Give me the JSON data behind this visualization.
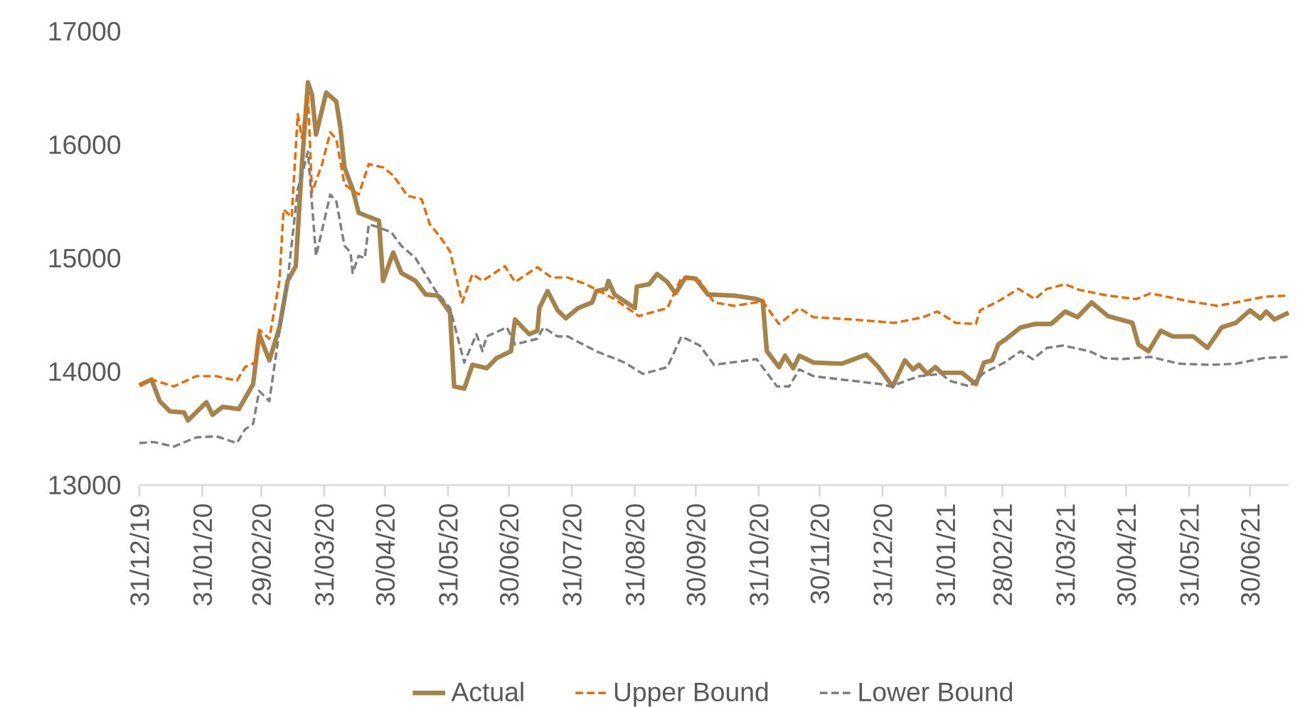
{
  "chart_data": {
    "type": "line",
    "legend": "bottom",
    "xlim": [
      "2019-12-31",
      "2021-07-19"
    ],
    "ylim": [
      13000,
      17000
    ],
    "yticks": [
      13000,
      14000,
      15000,
      16000,
      17000
    ],
    "xticks": [
      {
        "value": "2019-12-31",
        "label": "31/12/19"
      },
      {
        "value": "2020-01-31",
        "label": "31/01/20"
      },
      {
        "value": "2020-02-29",
        "label": "29/02/20"
      },
      {
        "value": "2020-03-31",
        "label": "31/03/20"
      },
      {
        "value": "2020-04-30",
        "label": "30/04/20"
      },
      {
        "value": "2020-05-31",
        "label": "31/05/20"
      },
      {
        "value": "2020-06-30",
        "label": "30/06/20"
      },
      {
        "value": "2020-07-31",
        "label": "31/07/20"
      },
      {
        "value": "2020-08-31",
        "label": "31/08/20"
      },
      {
        "value": "2020-09-30",
        "label": "30/09/20"
      },
      {
        "value": "2020-10-31",
        "label": "31/10/20"
      },
      {
        "value": "2020-11-30",
        "label": "30/11/20"
      },
      {
        "value": "2020-12-31",
        "label": "31/12/20"
      },
      {
        "value": "2021-01-31",
        "label": "31/01/21"
      },
      {
        "value": "2021-02-28",
        "label": "28/02/21"
      },
      {
        "value": "2021-03-31",
        "label": "31/03/21"
      },
      {
        "value": "2021-04-30",
        "label": "30/04/21"
      },
      {
        "value": "2021-05-31",
        "label": "31/05/21"
      },
      {
        "value": "2021-06-30",
        "label": "30/06/21"
      }
    ],
    "series": [
      {
        "name": "Actual",
        "color": "#a5834a",
        "line_style": "solid",
        "x": [
          "2019-12-31",
          "2020-01-06",
          "2020-01-10",
          "2020-01-15",
          "2020-01-22",
          "2020-01-24",
          "2020-02-02",
          "2020-02-05",
          "2020-02-10",
          "2020-02-18",
          "2020-02-25",
          "2020-02-28",
          "2020-03-04",
          "2020-03-09",
          "2020-03-13",
          "2020-03-17",
          "2020-03-20",
          "2020-03-23",
          "2020-03-25",
          "2020-03-27",
          "2020-04-01",
          "2020-04-06",
          "2020-04-08",
          "2020-04-10",
          "2020-04-14",
          "2020-04-17",
          "2020-04-27",
          "2020-04-29",
          "2020-05-04",
          "2020-05-08",
          "2020-05-15",
          "2020-05-20",
          "2020-05-26",
          "2020-06-01",
          "2020-06-03",
          "2020-06-08",
          "2020-06-12",
          "2020-06-19",
          "2020-06-24",
          "2020-07-01",
          "2020-07-03",
          "2020-07-10",
          "2020-07-14",
          "2020-07-15",
          "2020-07-19",
          "2020-07-24",
          "2020-07-28",
          "2020-08-03",
          "2020-08-10",
          "2020-08-12",
          "2020-08-17",
          "2020-08-18",
          "2020-08-21",
          "2020-08-31",
          "2020-09-01",
          "2020-09-07",
          "2020-09-11",
          "2020-09-16",
          "2020-09-20",
          "2020-09-25",
          "2020-09-30",
          "2020-10-06",
          "2020-10-19",
          "2020-10-30",
          "2020-11-02",
          "2020-11-04",
          "2020-11-10",
          "2020-11-13",
          "2020-11-17",
          "2020-11-20",
          "2020-11-27",
          "2020-12-11",
          "2020-12-23",
          "2020-12-29",
          "2021-01-05",
          "2021-01-11",
          "2021-01-15",
          "2021-01-18",
          "2021-01-22",
          "2021-01-26",
          "2021-01-29",
          "2021-02-08",
          "2021-02-15",
          "2021-02-19",
          "2021-02-23",
          "2021-02-26",
          "2021-03-02",
          "2021-03-09",
          "2021-03-16",
          "2021-03-24",
          "2021-03-31",
          "2021-04-06",
          "2021-04-13",
          "2021-04-21",
          "2021-05-03",
          "2021-05-06",
          "2021-05-11",
          "2021-05-17",
          "2021-05-23",
          "2021-06-02",
          "2021-06-09",
          "2021-06-16",
          "2021-06-23",
          "2021-06-30",
          "2021-07-05",
          "2021-07-08",
          "2021-07-12",
          "2021-07-19"
        ],
        "values": [
          13880,
          13930,
          13740,
          13650,
          13640,
          13570,
          13730,
          13620,
          13690,
          13670,
          13890,
          14330,
          14100,
          14390,
          14800,
          14930,
          15810,
          16550,
          16440,
          16090,
          16460,
          16380,
          16150,
          15800,
          15610,
          15400,
          15330,
          14800,
          15050,
          14870,
          14800,
          14680,
          14670,
          14520,
          13870,
          13850,
          14060,
          14030,
          14120,
          14180,
          14460,
          14330,
          14360,
          14560,
          14710,
          14540,
          14470,
          14560,
          14610,
          14710,
          14730,
          14800,
          14680,
          14560,
          14750,
          14770,
          14860,
          14790,
          14690,
          14830,
          14820,
          14680,
          14670,
          14640,
          14620,
          14180,
          14040,
          14140,
          14030,
          14140,
          14080,
          14070,
          14150,
          14040,
          13870,
          14100,
          14020,
          14060,
          13980,
          14040,
          13990,
          13990,
          13890,
          14080,
          14100,
          14240,
          14290,
          14390,
          14420,
          14420,
          14530,
          14480,
          14610,
          14490,
          14430,
          14240,
          14180,
          14360,
          14310,
          14310,
          14210,
          14390,
          14430,
          14540,
          14470,
          14530,
          14460,
          14520
        ]
      },
      {
        "name": "Upper Bound",
        "color": "#e46c0a",
        "line_style": "dashed",
        "x": [
          "2019-12-31",
          "2020-01-06",
          "2020-01-17",
          "2020-01-28",
          "2020-02-07",
          "2020-02-17",
          "2020-02-21",
          "2020-02-26",
          "2020-02-28",
          "2020-03-04",
          "2020-03-09",
          "2020-03-11",
          "2020-03-15",
          "2020-03-18",
          "2020-03-20",
          "2020-03-23",
          "2020-03-25",
          "2020-03-30",
          "2020-04-03",
          "2020-04-06",
          "2020-04-10",
          "2020-04-17",
          "2020-04-22",
          "2020-04-29",
          "2020-05-04",
          "2020-05-11",
          "2020-05-18",
          "2020-05-22",
          "2020-05-27",
          "2020-06-01",
          "2020-06-07",
          "2020-06-12",
          "2020-06-17",
          "2020-06-28",
          "2020-07-03",
          "2020-07-14",
          "2020-07-21",
          "2020-07-29",
          "2020-08-07",
          "2020-08-21",
          "2020-09-02",
          "2020-09-16",
          "2020-09-23",
          "2020-10-02",
          "2020-10-09",
          "2020-10-19",
          "2020-11-02",
          "2020-11-10",
          "2020-11-20",
          "2020-11-27",
          "2020-12-16",
          "2021-01-06",
          "2021-01-20",
          "2021-01-27",
          "2021-02-05",
          "2021-02-15",
          "2021-02-17",
          "2021-02-26",
          "2021-03-08",
          "2021-03-16",
          "2021-03-22",
          "2021-03-31",
          "2021-04-07",
          "2021-04-21",
          "2021-05-05",
          "2021-05-12",
          "2021-05-31",
          "2021-06-14",
          "2021-06-23",
          "2021-07-07",
          "2021-07-19"
        ],
        "values": [
          13880,
          13930,
          13870,
          13960,
          13960,
          13920,
          14040,
          14080,
          14370,
          14290,
          14800,
          15430,
          15360,
          16270,
          16060,
          16440,
          15580,
          15830,
          16110,
          16050,
          15650,
          15560,
          15830,
          15800,
          15730,
          15550,
          15520,
          15300,
          15190,
          15060,
          14610,
          14860,
          14800,
          14930,
          14790,
          14920,
          14830,
          14830,
          14770,
          14640,
          14490,
          14560,
          14830,
          14800,
          14610,
          14580,
          14620,
          14420,
          14560,
          14480,
          14460,
          14430,
          14480,
          14530,
          14430,
          14420,
          14540,
          14620,
          14730,
          14640,
          14730,
          14770,
          14720,
          14670,
          14640,
          14690,
          14620,
          14580,
          14610,
          14660,
          14670
        ]
      },
      {
        "name": "Lower Bound",
        "color": "#7f7f7f",
        "line_style": "dashed",
        "x": [
          "2019-12-31",
          "2020-01-07",
          "2020-01-17",
          "2020-01-28",
          "2020-02-07",
          "2020-02-17",
          "2020-02-21",
          "2020-02-25",
          "2020-02-28",
          "2020-03-04",
          "2020-03-09",
          "2020-03-13",
          "2020-03-18",
          "2020-03-20",
          "2020-03-23",
          "2020-03-27",
          "2020-03-30",
          "2020-04-03",
          "2020-04-06",
          "2020-04-10",
          "2020-04-13",
          "2020-04-14",
          "2020-04-17",
          "2020-04-20",
          "2020-04-22",
          "2020-04-27",
          "2020-05-03",
          "2020-05-08",
          "2020-05-15",
          "2020-05-25",
          "2020-06-01",
          "2020-06-08",
          "2020-06-14",
          "2020-06-17",
          "2020-06-19",
          "2020-06-29",
          "2020-07-03",
          "2020-07-14",
          "2020-07-17",
          "2020-07-24",
          "2020-07-29",
          "2020-08-12",
          "2020-08-26",
          "2020-09-04",
          "2020-09-16",
          "2020-09-23",
          "2020-10-02",
          "2020-10-09",
          "2020-10-30",
          "2020-11-04",
          "2020-11-09",
          "2020-11-15",
          "2020-11-20",
          "2020-11-27",
          "2020-12-16",
          "2020-12-30",
          "2021-01-04",
          "2021-01-18",
          "2021-01-29",
          "2021-02-02",
          "2021-02-12",
          "2021-02-19",
          "2021-03-01",
          "2021-03-09",
          "2021-03-15",
          "2021-03-22",
          "2021-03-30",
          "2021-04-12",
          "2021-04-19",
          "2021-04-27",
          "2021-05-12",
          "2021-05-26",
          "2021-06-11",
          "2021-06-23",
          "2021-07-07",
          "2021-07-19"
        ],
        "values": [
          13370,
          13380,
          13340,
          13420,
          13430,
          13370,
          13490,
          13540,
          13830,
          13740,
          14360,
          14800,
          15610,
          15730,
          15940,
          15020,
          15250,
          15560,
          15500,
          15110,
          15050,
          14870,
          15020,
          15000,
          15300,
          15270,
          15230,
          15110,
          15000,
          14710,
          14560,
          14080,
          14330,
          14180,
          14310,
          14390,
          14240,
          14290,
          14390,
          14310,
          14310,
          14180,
          14080,
          13980,
          14040,
          14310,
          14230,
          14060,
          14110,
          13990,
          13870,
          13870,
          14020,
          13960,
          13920,
          13890,
          13870,
          13960,
          13980,
          13920,
          13870,
          13990,
          14080,
          14180,
          14110,
          14210,
          14230,
          14180,
          14120,
          14110,
          14130,
          14070,
          14060,
          14070,
          14120,
          14130
        ]
      }
    ]
  }
}
